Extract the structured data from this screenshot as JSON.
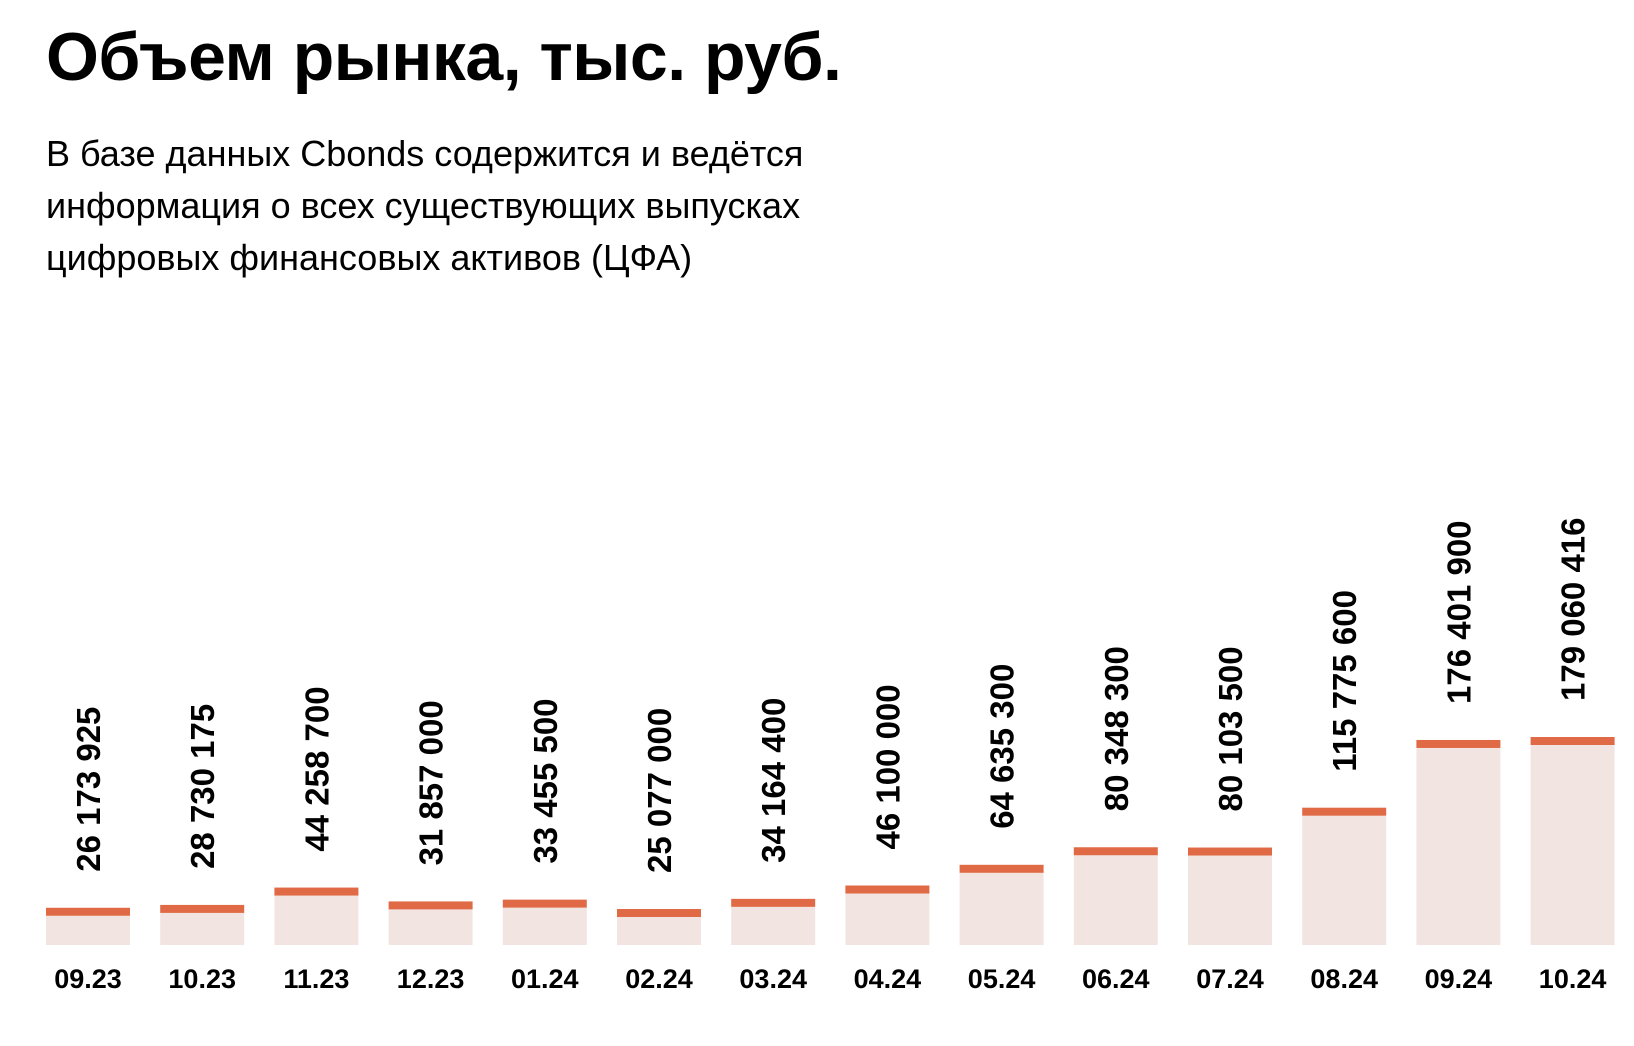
{
  "chart_data": {
    "type": "bar",
    "title": "Объем рынка, тыс. руб.",
    "subtitle_lines": [
      "В базе данных Cbonds содержится и ведётся",
      "информация о всех существующих выпусках",
      "цифровых финансовых активов (ЦФА)"
    ],
    "categories": [
      "09.23",
      "10.23",
      "11.23",
      "12.23",
      "01.24",
      "02.24",
      "03.24",
      "04.24",
      "05.24",
      "06.24",
      "07.24",
      "08.24",
      "09.24",
      "10.24"
    ],
    "values": [
      26173925,
      28730175,
      44258700,
      31857000,
      33455500,
      25077000,
      34164400,
      46100000,
      64635300,
      80348300,
      80103500,
      115775600,
      176401900,
      179060416
    ],
    "value_labels": [
      "26 173 925",
      "28 730 175",
      "44 258 700",
      "31 857 000",
      "33 455 500",
      "25 077 000",
      "34 164 400",
      "46 100 000",
      "64 635 300",
      "80 348 300",
      "80 103 500",
      "115 775 600",
      "176 401 900",
      "179 060 416"
    ],
    "xlabel": "",
    "ylabel": "",
    "ylim": [
      0,
      179060416
    ],
    "grid": false,
    "legend": "none"
  },
  "colors": {
    "bar_fill": "#f2e5e1",
    "bar_cap": "#e06a45",
    "text": "#000000"
  }
}
